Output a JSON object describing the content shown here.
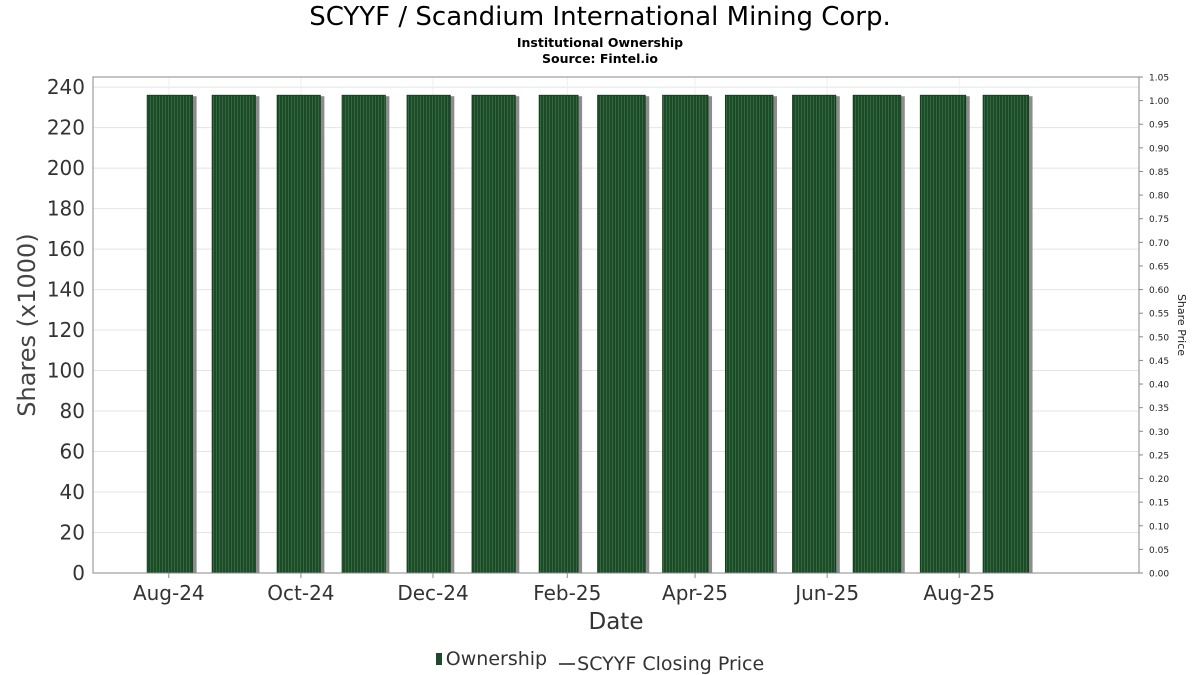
{
  "chart_data": {
    "type": "bar",
    "title": "SCYYF / Scandium International Mining Corp.",
    "subtitle": "Institutional Ownership",
    "source": "Source: Fintel.io",
    "xlabel": "Date",
    "ylabel": "Shares (x1000)",
    "y2label": "Share Price",
    "ylim": [
      0,
      245
    ],
    "y2lim": [
      0,
      1.05
    ],
    "yticks": [
      0,
      20,
      40,
      60,
      80,
      100,
      120,
      140,
      160,
      180,
      200,
      220,
      240
    ],
    "y2ticks": [
      "0.00",
      "0.05",
      "0.10",
      "0.15",
      "0.20",
      "0.25",
      "0.30",
      "0.35",
      "0.40",
      "0.45",
      "0.50",
      "0.55",
      "0.60",
      "0.65",
      "0.70",
      "0.75",
      "0.80",
      "0.85",
      "0.90",
      "0.95",
      "1.00",
      "1.05"
    ],
    "xticks": [
      "Aug-24",
      "Oct-24",
      "Dec-24",
      "Feb-25",
      "Apr-25",
      "Jun-25",
      "Aug-25"
    ],
    "xrange": [
      "2024-06-27",
      "2025-10-23"
    ],
    "bars": [
      {
        "start": "2024-07-22",
        "end": "2024-08-11",
        "value": 236
      },
      {
        "start": "2024-08-21",
        "end": "2024-09-09",
        "value": 236
      },
      {
        "start": "2024-09-20",
        "end": "2024-10-09",
        "value": 236
      },
      {
        "start": "2024-10-20",
        "end": "2024-11-08",
        "value": 236
      },
      {
        "start": "2024-11-19",
        "end": "2024-12-08",
        "value": 236
      },
      {
        "start": "2024-12-19",
        "end": "2025-01-07",
        "value": 236
      },
      {
        "start": "2025-01-19",
        "end": "2025-02-05",
        "value": 236
      },
      {
        "start": "2025-02-15",
        "end": "2025-03-08",
        "value": 236
      },
      {
        "start": "2025-03-17",
        "end": "2025-04-06",
        "value": 236
      },
      {
        "start": "2025-04-15",
        "end": "2025-05-06",
        "value": 236
      },
      {
        "start": "2025-05-16",
        "end": "2025-06-04",
        "value": 236
      },
      {
        "start": "2025-06-13",
        "end": "2025-07-04",
        "value": 236
      },
      {
        "start": "2025-07-14",
        "end": "2025-08-03",
        "value": 236
      },
      {
        "start": "2025-08-12",
        "end": "2025-09-01",
        "value": 236
      }
    ],
    "series": [
      {
        "name": "Ownership",
        "color": "#1e4a2a"
      },
      {
        "name": "SCYYF Closing Price",
        "color": "#555555"
      }
    ],
    "grid": true,
    "legend_position": "bottom"
  }
}
